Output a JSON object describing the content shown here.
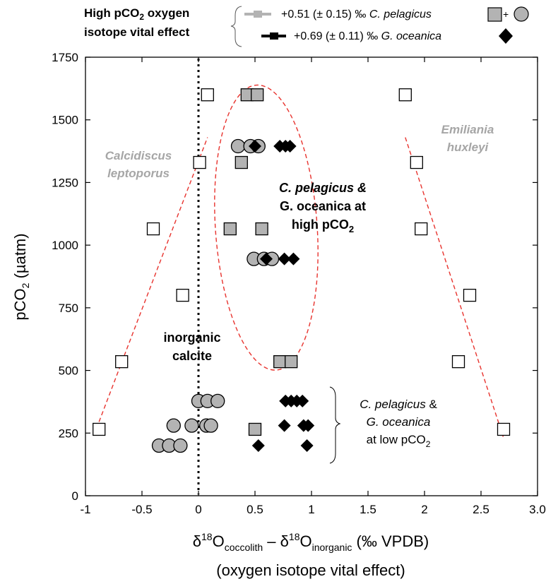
{
  "chart_data": {
    "type": "scatter",
    "xlim": [
      -1,
      3.0
    ],
    "ylim": [
      0,
      1750
    ],
    "x_ticks": [
      -1,
      -0.5,
      0,
      0.5,
      1,
      1.5,
      2,
      2.5,
      3.0
    ],
    "x_tick_labels": [
      "-1",
      "-0.5",
      "0",
      "0.5",
      "1",
      "1.5",
      "2",
      "2.5",
      "3.0"
    ],
    "y_ticks": [
      0,
      250,
      500,
      750,
      1000,
      1250,
      1500,
      1750
    ],
    "y_tick_labels": [
      "0",
      "250",
      "500",
      "750",
      "1000",
      "1250",
      "1500",
      "1750"
    ],
    "xlabel": {
      "line1": {
        "a": "δ",
        "sup1": "18",
        "b": "O",
        "sub1": "coccolith",
        "c": " – δ",
        "sup2": "18",
        "d": "O",
        "sub2": "inorganic",
        "e": " (‰ VPDB)"
      },
      "line2": "(oxygen isotope vital effect)"
    },
    "ylabel": {
      "main": "pCO",
      "sub": "2",
      "unit": " (µatm)"
    },
    "grid": false,
    "legend": {
      "position": "top",
      "heading_line1": "High pCO",
      "heading_sub": "2",
      "heading_line1_end": " oxygen",
      "heading_line2": "isotope vital effect",
      "entries": [
        {
          "text": "+0.51 (± 0.15) ‰ ",
          "species": "C. pelagicus",
          "bar_color": "#b3b3b3",
          "symbols": "square+circle",
          "plus": "+"
        },
        {
          "text": "+0.69 (± 0.11) ‰ ",
          "species": "G. oceanica",
          "bar_color": "#000000",
          "symbols": "diamond"
        }
      ]
    },
    "series": [
      {
        "name": "Emiliania huxleyi",
        "marker": "open-square",
        "points": [
          {
            "x": 1.83,
            "y": 1600
          },
          {
            "x": 1.93,
            "y": 1330
          },
          {
            "x": 1.97,
            "y": 1065
          },
          {
            "x": 2.4,
            "y": 800
          },
          {
            "x": 2.3,
            "y": 535
          },
          {
            "x": 2.7,
            "y": 265
          }
        ]
      },
      {
        "name": "Calcidiscus leptoporus",
        "marker": "open-square",
        "points": [
          {
            "x": 0.08,
            "y": 1600
          },
          {
            "x": 0.01,
            "y": 1330
          },
          {
            "x": -0.4,
            "y": 1065
          },
          {
            "x": -0.14,
            "y": 800
          },
          {
            "x": -0.68,
            "y": 535
          },
          {
            "x": -0.88,
            "y": 265
          }
        ]
      },
      {
        "name": "C. pelagicus (square)",
        "marker": "gray-square",
        "points": [
          {
            "x": 0.43,
            "y": 1600
          },
          {
            "x": 0.52,
            "y": 1600
          },
          {
            "x": 0.38,
            "y": 1330
          },
          {
            "x": 0.28,
            "y": 1065
          },
          {
            "x": 0.56,
            "y": 1065
          },
          {
            "x": 0.72,
            "y": 535
          },
          {
            "x": 0.82,
            "y": 535
          },
          {
            "x": 0.5,
            "y": 265
          }
        ]
      },
      {
        "name": "C. pelagicus (circle)",
        "marker": "gray-circle",
        "points": [
          {
            "x": 0.35,
            "y": 1395
          },
          {
            "x": 0.46,
            "y": 1395
          },
          {
            "x": 0.53,
            "y": 1395
          },
          {
            "x": 0.49,
            "y": 945
          },
          {
            "x": 0.58,
            "y": 945
          },
          {
            "x": 0.65,
            "y": 945
          },
          {
            "x": 0.0,
            "y": 378
          },
          {
            "x": 0.08,
            "y": 378
          },
          {
            "x": 0.17,
            "y": 378
          },
          {
            "x": -0.22,
            "y": 280
          },
          {
            "x": -0.06,
            "y": 280
          },
          {
            "x": 0.07,
            "y": 280
          },
          {
            "x": 0.11,
            "y": 280
          },
          {
            "x": -0.35,
            "y": 200
          },
          {
            "x": -0.26,
            "y": 200
          },
          {
            "x": -0.16,
            "y": 200
          }
        ]
      },
      {
        "name": "G. oceanica",
        "marker": "black-diamond",
        "points": [
          {
            "x": 0.5,
            "y": 1395
          },
          {
            "x": 0.72,
            "y": 1395
          },
          {
            "x": 0.77,
            "y": 1395
          },
          {
            "x": 0.81,
            "y": 1395
          },
          {
            "x": 0.6,
            "y": 945
          },
          {
            "x": 0.76,
            "y": 945
          },
          {
            "x": 0.84,
            "y": 945
          },
          {
            "x": 0.77,
            "y": 378
          },
          {
            "x": 0.82,
            "y": 378
          },
          {
            "x": 0.87,
            "y": 378
          },
          {
            "x": 0.92,
            "y": 378
          },
          {
            "x": 0.76,
            "y": 280
          },
          {
            "x": 0.93,
            "y": 280
          },
          {
            "x": 0.97,
            "y": 280
          },
          {
            "x": 0.53,
            "y": 200
          },
          {
            "x": 0.96,
            "y": 200
          }
        ]
      }
    ],
    "reference_line": {
      "x": 0,
      "style": "dotted",
      "color": "#000000"
    },
    "trend_lines": [
      {
        "points": [
          {
            "x": -0.88,
            "y": 295
          },
          {
            "x": 0.08,
            "y": 1430
          }
        ],
        "color": "#e8332e",
        "style": "dashed"
      },
      {
        "points": [
          {
            "x": 1.83,
            "y": 1430
          },
          {
            "x": 2.7,
            "y": 230
          }
        ],
        "color": "#e8332e",
        "style": "dashed"
      }
    ],
    "ellipse": {
      "cx": 0.6,
      "cy": 1070,
      "rx": 0.45,
      "ry": 570,
      "color": "#e8332e",
      "style": "dashed"
    },
    "annotations": {
      "calcidiscus": {
        "line1": "Calcidiscus",
        "line2": "leptoporus",
        "color": "#a6a6a6"
      },
      "emiliania": {
        "line1": "Emiliania",
        "line2": "huxleyi",
        "color": "#a6a6a6"
      },
      "high": {
        "line1": "C. pelagicus &",
        "line2": "G. oceanica at",
        "line3_main": "high pCO",
        "line3_sub": "2"
      },
      "inorganic": {
        "line1": "inorganic",
        "line2": "calcite"
      },
      "low": {
        "line1_species": "C. pelagicus",
        "line1_rest": " &",
        "line2": "G. oceanica",
        "line3_main": "at low pCO",
        "line3_sub": "2"
      }
    },
    "colors": {
      "gray_marker": "#b3b3b3",
      "marker_stroke": "#000000",
      "open_marker_fill": "#ffffff",
      "diamond": "#000000",
      "trend": "#e8332e",
      "annotation_gray": "#a6a6a6"
    }
  }
}
